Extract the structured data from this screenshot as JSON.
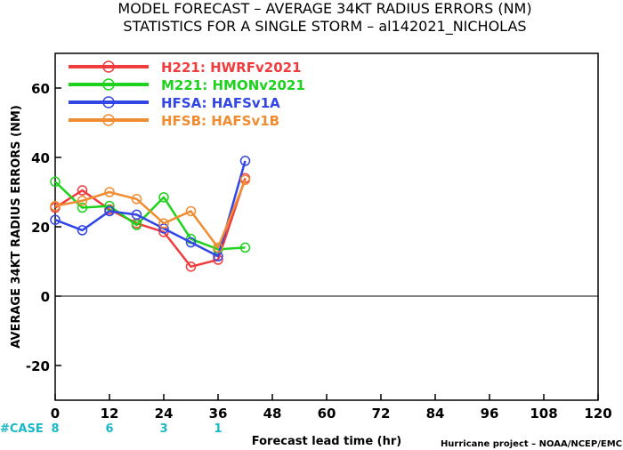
{
  "title_line1": "MODEL FORECAST – AVERAGE 34KT RADIUS ERRORS (NM)",
  "title_line2": "STATISTICS FOR A SINGLE STORM – al142021_NICHOLAS",
  "case_label": "#CASE",
  "credit": "Hurricane project – NOAA/NCEP/EMC",
  "chart_data": {
    "type": "line",
    "xlabel": "Forecast lead time (hr)",
    "ylabel": "AVERAGE 34KT RADIUS ERRORS (NM)",
    "xlim": [
      0,
      120
    ],
    "ylim": [
      -30,
      70
    ],
    "xticks": [
      0,
      12,
      24,
      36,
      48,
      60,
      72,
      84,
      96,
      108,
      120
    ],
    "yticks": [
      -20,
      0,
      20,
      40,
      60
    ],
    "zero_line": true,
    "grid": false,
    "legend_position": "top-left",
    "cases": [
      {
        "x": 0,
        "label": "8"
      },
      {
        "x": 12,
        "label": "6"
      },
      {
        "x": 24,
        "label": "3"
      },
      {
        "x": 36,
        "label": "1"
      }
    ],
    "series": [
      {
        "code": "H221",
        "name": "HWRFv2021",
        "color": "#f03c3c",
        "x": [
          0,
          6,
          12,
          18,
          24,
          30,
          36,
          42
        ],
        "values": [
          25.5,
          30.5,
          25,
          21,
          18.5,
          8.5,
          10.5,
          34
        ]
      },
      {
        "code": "M221",
        "name": "HMONv2021",
        "color": "#1ed21e",
        "x": [
          0,
          6,
          12,
          18,
          24,
          30,
          36,
          42
        ],
        "values": [
          33,
          25.5,
          26,
          20.5,
          28.5,
          16.5,
          13.5,
          14
        ]
      },
      {
        "code": "HFSA",
        "name": "HAFSv1A",
        "color": "#3246e6",
        "x": [
          0,
          6,
          12,
          18,
          24,
          30,
          36,
          42
        ],
        "values": [
          22,
          19,
          24.5,
          23.5,
          19.5,
          15.5,
          11.5,
          39
        ]
      },
      {
        "code": "HFSB",
        "name": "HAFSv1B",
        "color": "#f08c32",
        "x": [
          0,
          6,
          12,
          18,
          24,
          30,
          36,
          42
        ],
        "values": [
          26,
          27.5,
          30,
          28,
          21,
          24.5,
          14,
          33.5
        ]
      }
    ]
  }
}
